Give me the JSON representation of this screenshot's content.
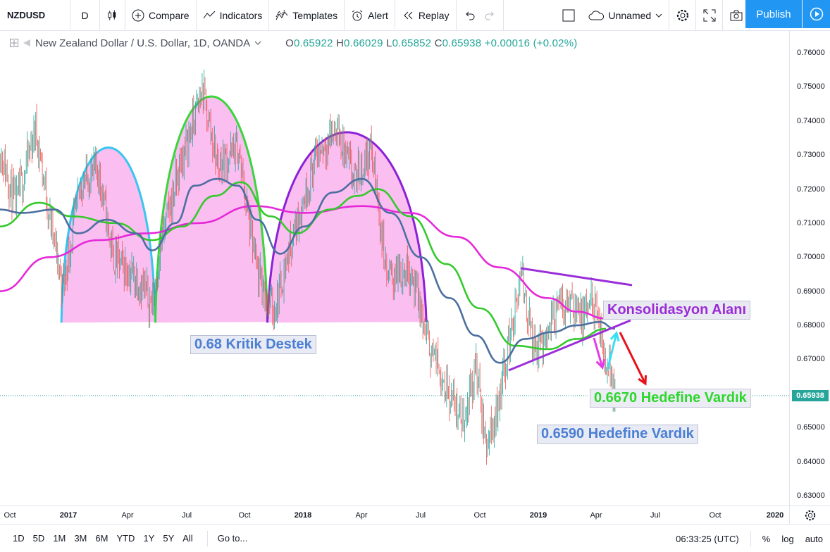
{
  "toolbar": {
    "symbol": "NZDUSD",
    "interval": "D",
    "compare": "Compare",
    "indicators": "Indicators",
    "templates": "Templates",
    "alert": "Alert",
    "replay": "Replay",
    "layout_name": "Unnamed",
    "publish": "Publish"
  },
  "legend": {
    "title": "New Zealand Dollar / U.S. Dollar, 1D, OANDA",
    "open_label": "O",
    "open": "0.65922",
    "high_label": "H",
    "high": "0.66029",
    "low_label": "L",
    "low": "0.65852",
    "close_label": "C",
    "close": "0.65938",
    "change": "+0.00016 (+0.02%)"
  },
  "price_axis": {
    "ticks": [
      "0.76000",
      "0.75000",
      "0.74000",
      "0.73000",
      "0.72000",
      "0.71000",
      "0.70000",
      "0.69000",
      "0.68000",
      "0.67000",
      "0.66000",
      "0.65000",
      "0.64000",
      "0.63000"
    ],
    "last_price": "0.65938",
    "last_price_color": "#26a69a"
  },
  "time_axis": {
    "ticks": [
      "Oct",
      "2017",
      "Apr",
      "Jul",
      "Oct",
      "2018",
      "Apr",
      "Jul",
      "Oct",
      "2019",
      "Apr",
      "Jul",
      "Oct",
      "2020"
    ]
  },
  "annotations": {
    "support": "0.68 Kritik Destek",
    "consolidation": "Konsolidasyon Alanı",
    "target1": "0.6670 Hedefine Vardık",
    "target2": "0.6590 Hedefine Vardık"
  },
  "bottom_bar": {
    "ranges": [
      "1D",
      "5D",
      "1M",
      "3M",
      "6M",
      "YTD",
      "1Y",
      "5Y",
      "All"
    ],
    "goto": "Go to...",
    "clock": "06:33:25 (UTC)",
    "percent": "%",
    "log": "log",
    "auto": "auto"
  },
  "chart_data": {
    "type": "candlestick",
    "symbol": "NZDUSD",
    "ylim": [
      0.625,
      0.765
    ],
    "last": 0.65938,
    "path": [
      [
        "2016-09-15",
        0.732
      ],
      [
        "2016-10-10",
        0.715
      ],
      [
        "2016-11-10",
        0.738
      ],
      [
        "2016-12-05",
        0.708
      ],
      [
        "2016-12-22",
        0.691
      ],
      [
        "2017-01-20",
        0.722
      ],
      [
        "2017-02-15",
        0.726
      ],
      [
        "2017-03-10",
        0.7
      ],
      [
        "2017-04-20",
        0.693
      ],
      [
        "2017-05-10",
        0.686
      ],
      [
        "2017-05-25",
        0.705
      ],
      [
        "2017-06-20",
        0.725
      ],
      [
        "2017-07-27",
        0.749
      ],
      [
        "2017-08-20",
        0.727
      ],
      [
        "2017-09-20",
        0.732
      ],
      [
        "2017-10-20",
        0.695
      ],
      [
        "2017-11-15",
        0.684
      ],
      [
        "2017-12-10",
        0.703
      ],
      [
        "2018-01-20",
        0.73
      ],
      [
        "2018-02-20",
        0.738
      ],
      [
        "2018-03-20",
        0.722
      ],
      [
        "2018-04-15",
        0.732
      ],
      [
        "2018-05-10",
        0.694
      ],
      [
        "2018-06-15",
        0.697
      ],
      [
        "2018-07-10",
        0.676
      ],
      [
        "2018-08-20",
        0.658
      ],
      [
        "2018-09-05",
        0.652
      ],
      [
        "2018-09-25",
        0.668
      ],
      [
        "2018-10-10",
        0.645
      ],
      [
        "2018-10-25",
        0.653
      ],
      [
        "2018-11-15",
        0.675
      ],
      [
        "2018-12-05",
        0.694
      ],
      [
        "2018-12-25",
        0.672
      ],
      [
        "2019-01-03",
        0.673
      ],
      [
        "2019-01-25",
        0.684
      ],
      [
        "2019-02-20",
        0.688
      ],
      [
        "2019-03-10",
        0.681
      ],
      [
        "2019-03-25",
        0.688
      ],
      [
        "2019-04-10",
        0.673
      ],
      [
        "2019-04-20",
        0.667
      ],
      [
        "2019-04-29",
        0.659
      ]
    ],
    "ma_short": [
      [
        "2016-09-15",
        0.714
      ],
      [
        "2016-10-20",
        0.713
      ],
      [
        "2016-12-10",
        0.714
      ],
      [
        "2017-01-15",
        0.707
      ],
      [
        "2017-03-01",
        0.711
      ],
      [
        "2017-04-15",
        0.707
      ],
      [
        "2017-05-10",
        0.702
      ],
      [
        "2017-06-15",
        0.71
      ],
      [
        "2017-07-15",
        0.721
      ],
      [
        "2017-08-20",
        0.723
      ],
      [
        "2017-09-20",
        0.721
      ],
      [
        "2017-10-20",
        0.711
      ],
      [
        "2017-11-25",
        0.701
      ],
      [
        "2018-01-01",
        0.709
      ],
      [
        "2018-02-15",
        0.719
      ],
      [
        "2018-04-01",
        0.723
      ],
      [
        "2018-05-15",
        0.713
      ],
      [
        "2018-07-01",
        0.7
      ],
      [
        "2018-08-15",
        0.688
      ],
      [
        "2018-09-25",
        0.677
      ],
      [
        "2018-11-01",
        0.669
      ],
      [
        "2018-12-10",
        0.676
      ],
      [
        "2019-01-20",
        0.678
      ],
      [
        "2019-03-01",
        0.68
      ],
      [
        "2019-04-05",
        0.681
      ],
      [
        "2019-04-29",
        0.679
      ]
    ],
    "ma_mid": [
      [
        "2016-09-15",
        0.709
      ],
      [
        "2016-11-15",
        0.716
      ],
      [
        "2017-01-05",
        0.712
      ],
      [
        "2017-03-15",
        0.71
      ],
      [
        "2017-05-10",
        0.705
      ],
      [
        "2017-06-25",
        0.709
      ],
      [
        "2017-08-15",
        0.718
      ],
      [
        "2017-09-25",
        0.722
      ],
      [
        "2017-11-10",
        0.712
      ],
      [
        "2017-12-20",
        0.707
      ],
      [
        "2018-02-10",
        0.714
      ],
      [
        "2018-03-25",
        0.718
      ],
      [
        "2018-04-25",
        0.72
      ],
      [
        "2018-06-15",
        0.712
      ],
      [
        "2018-08-10",
        0.698
      ],
      [
        "2018-10-01",
        0.685
      ],
      [
        "2018-11-25",
        0.674
      ],
      [
        "2019-01-15",
        0.673
      ],
      [
        "2019-03-01",
        0.676
      ],
      [
        "2019-04-15",
        0.679
      ]
    ],
    "ma_long": [
      [
        "2016-09-15",
        0.69
      ],
      [
        "2016-12-01",
        0.7
      ],
      [
        "2017-02-15",
        0.705
      ],
      [
        "2017-05-01",
        0.707
      ],
      [
        "2017-07-20",
        0.71
      ],
      [
        "2017-10-15",
        0.715
      ],
      [
        "2018-01-01",
        0.713
      ],
      [
        "2018-04-01",
        0.715
      ],
      [
        "2018-06-15",
        0.713
      ],
      [
        "2018-08-25",
        0.706
      ],
      [
        "2018-11-01",
        0.697
      ],
      [
        "2019-01-15",
        0.688
      ],
      [
        "2019-03-01",
        0.684
      ],
      [
        "2019-04-15",
        0.682
      ]
    ]
  },
  "colors": {
    "ma_short": "#4c6fa0",
    "ma_mid": "#34c92c",
    "ma_long": "#e628d9",
    "candle_up": "#26a69a",
    "candle_down": "#ef5350",
    "arc_fill": "#f9b3ef",
    "arc_cyan": "#37c6f0",
    "arc_green": "#39d63a",
    "arc_purple": "#8c21d6",
    "triangle": "#9a2ed8",
    "arrow_red": "#e8111b",
    "arrow_magenta": "#e23ce8",
    "arrow_cyan": "#37e0f4"
  }
}
